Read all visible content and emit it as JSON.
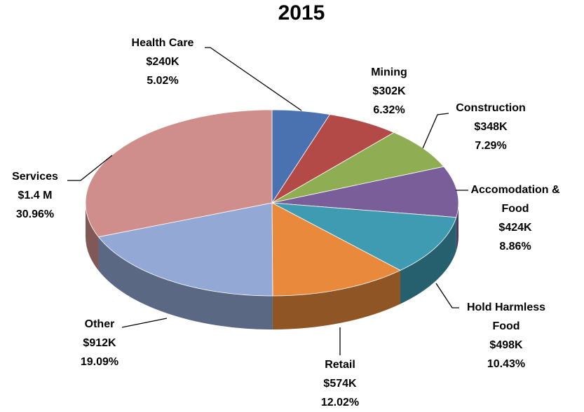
{
  "chart_data": {
    "type": "pie3d",
    "title": "2015",
    "categories": [
      "Health Care",
      "Mining",
      "Construction",
      "Accomodation & Food",
      "Hold Harmless Food",
      "Retail",
      "Other",
      "Services"
    ],
    "values": [
      5.02,
      6.32,
      7.29,
      8.86,
      10.43,
      12.02,
      19.09,
      30.96
    ],
    "value_labels": [
      "5.02%",
      "6.32%",
      "7.29%",
      "8.86%",
      "10.43%",
      "12.02%",
      "19.09%",
      "30.96%"
    ],
    "amounts": [
      "$240K",
      "$302K",
      "$348K",
      "$424K",
      "$498K",
      "$574K",
      "$912K",
      "$1.4 M"
    ],
    "colors": [
      "#4a72b0",
      "#b34a47",
      "#8fad52",
      "#7a5e9a",
      "#3e9bb2",
      "#e8893b",
      "#93a8d4",
      "#cf8e8c"
    ]
  }
}
